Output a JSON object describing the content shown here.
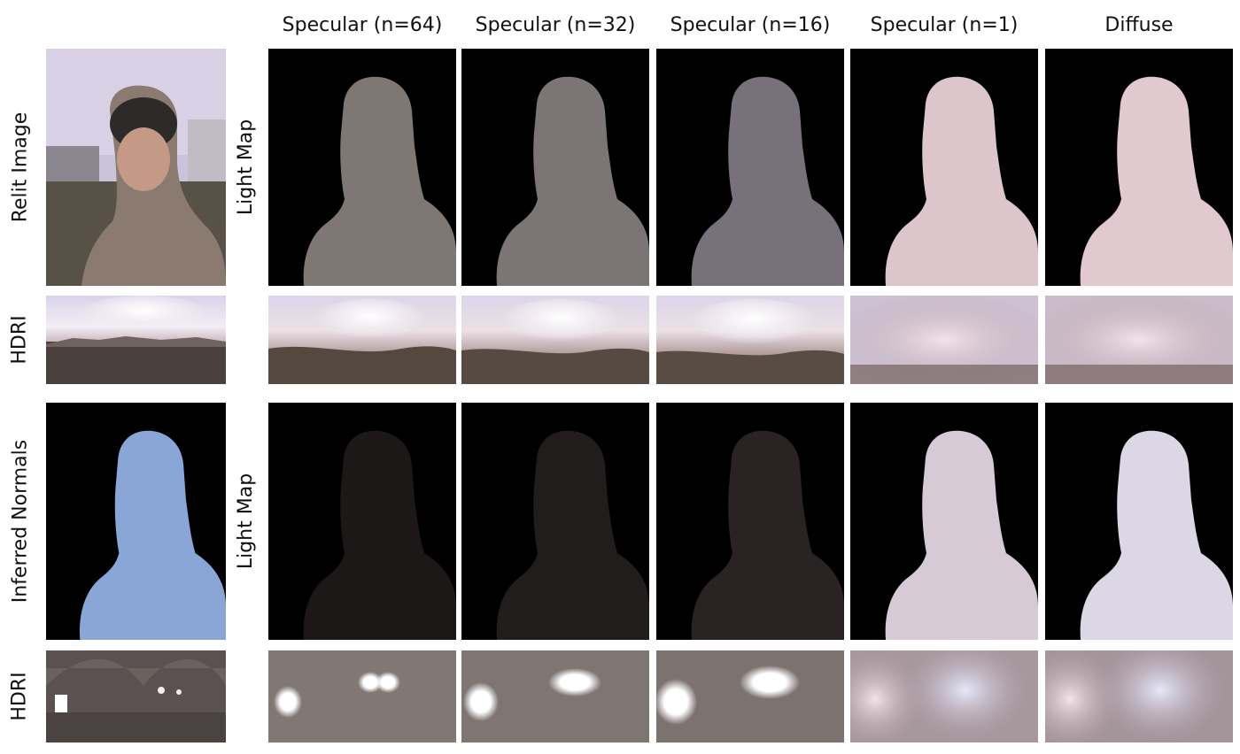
{
  "columns": {
    "spec64": "Specular (n=64)",
    "spec32": "Specular (n=32)",
    "spec16": "Specular (n=16)",
    "spec1": "Specular (n=1)",
    "diffuse": "Diffuse"
  },
  "rows": {
    "relit_image": "Relit Image",
    "hdri_top": "HDRI",
    "light_map_top": "Light Map",
    "inferred_normals": "Inferred Normals",
    "light_map_bottom": "Light Map",
    "hdri_bottom": "HDRI"
  },
  "colors": {
    "background": "#ffffff",
    "panel_black": "#000000",
    "normals_blue": "#8aa6d6",
    "lightmap_pink": "#e8cdd3",
    "lightmap_gray": "#7e7873",
    "sky_lavender": "#dcd6ec",
    "ground_brown": "#5a4e48"
  }
}
